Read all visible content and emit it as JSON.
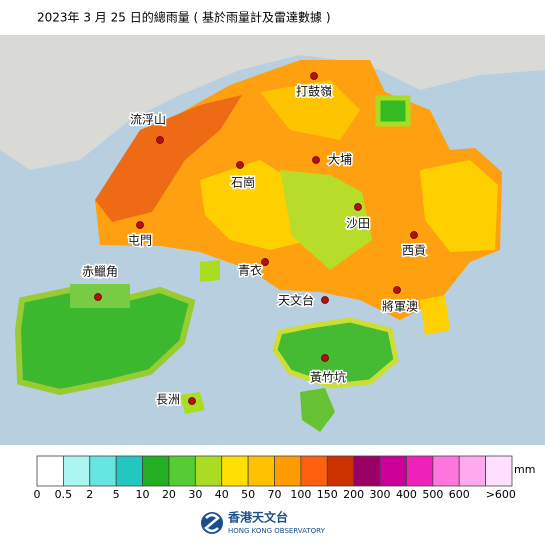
{
  "title": "2023年 3 月 25 日的總雨量 ( 基於雨量計及雷達數據 )",
  "places": [
    "打鼓嶺",
    "流浮山",
    "石崗",
    "大埔",
    "沙田",
    "屯門",
    "西貢",
    "青衣",
    "赤鱲角",
    "天文台",
    "將軍澳",
    "黃竹坑",
    "長洲"
  ],
  "legend": {
    "unit": "mm",
    "colors": [
      "#ffffff",
      "#aaf5f0",
      "#66e6e0",
      "#22c8c0",
      "#22b022",
      "#55cc33",
      "#aadd22",
      "#ffe000",
      "#ffc000",
      "#ff9a00",
      "#ff6010",
      "#cc3300",
      "#990066",
      "#cc0099",
      "#ee22bb",
      "#ff77dd",
      "#ffaaee",
      "#ffe0ff"
    ],
    "labels": [
      "0",
      "0.5",
      "2",
      "5",
      "10",
      "20",
      "30",
      "40",
      "50",
      "70",
      "100",
      "150",
      "200",
      "300",
      "400",
      "500",
      "600",
      ">600"
    ]
  },
  "logo": {
    "name": "香港天文台",
    "name_en": "HONG KONG OBSERVATORY"
  }
}
